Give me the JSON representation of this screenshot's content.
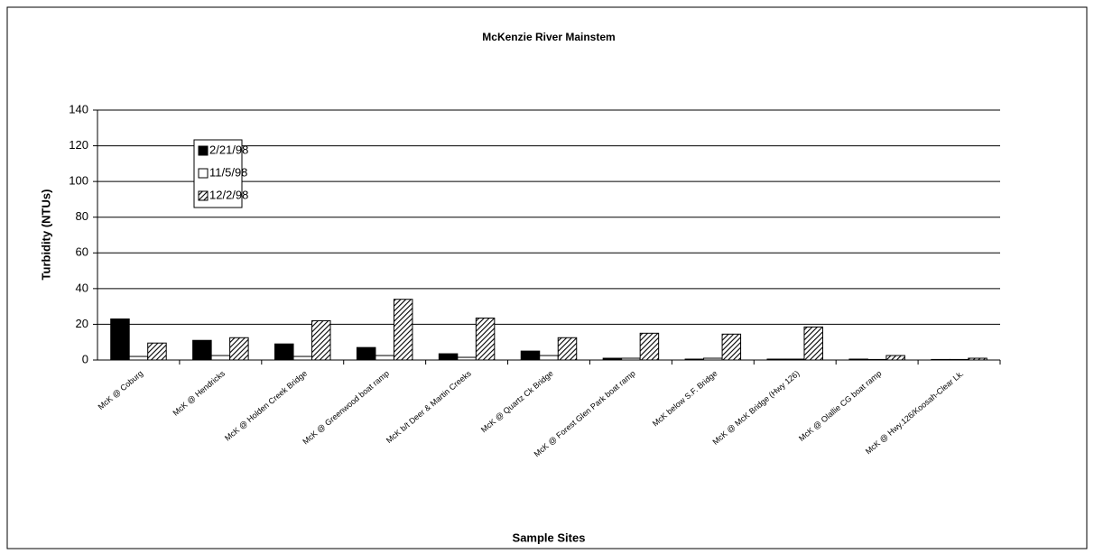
{
  "chart_data": {
    "type": "bar",
    "title": "McKenzie River Mainstem",
    "x_label": "Sample Sites",
    "y_label": "Turbidity (NTUs)",
    "categories": [
      "McK @ Coburg",
      "McK @ Hendricks",
      "McK @ Holden Creek Bridge",
      "McK @ Greenwood boat ramp",
      "McK b/t Deer & Martin Creeks",
      "McK @ Quartz Ck Bridge",
      "McK @ Forest Glen Park boat ramp",
      "McK below S.F. Bridge",
      "McK @ McK Bridge (Hwy 126)",
      "McK @ Olallie CG boat ramp",
      "McK @ Hwy.126/Koosah-Clear Lk."
    ],
    "series": [
      {
        "name": "2/21/98",
        "color": "#000000",
        "pattern": "solid",
        "values": [
          23,
          11,
          9,
          7,
          3.5,
          5,
          1,
          0.5,
          0.5,
          0.5,
          0.3
        ]
      },
      {
        "name": "11/5/98",
        "color": "#ffffff",
        "pattern": "solid",
        "values": [
          2,
          2.5,
          2,
          2.5,
          1.5,
          2.5,
          1,
          1,
          0.5,
          0.3,
          0.3
        ]
      },
      {
        "name": "12/2/98",
        "color": "#000000",
        "pattern": "hatch",
        "values": [
          9.5,
          12.5,
          22,
          34,
          23.5,
          12.5,
          15,
          14.5,
          18.5,
          2.5,
          1
        ]
      }
    ],
    "ylim": [
      0,
      140
    ],
    "yticks": [
      0,
      20,
      40,
      60,
      80,
      100,
      120,
      140
    ],
    "grid": true
  }
}
